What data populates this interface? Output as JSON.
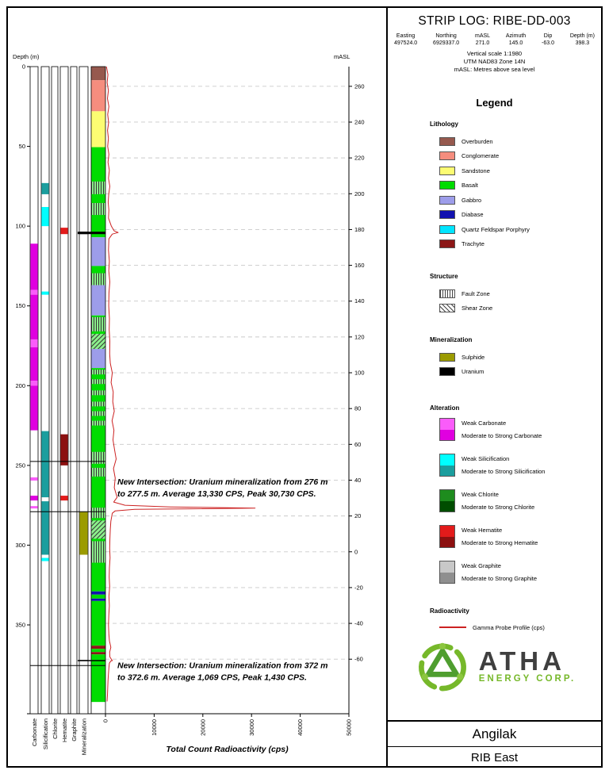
{
  "header": {
    "title": "STRIP LOG: RIBE-DD-003",
    "fields": [
      {
        "label": "Easting",
        "value": "497524.0"
      },
      {
        "label": "Northing",
        "value": "6929337.0"
      },
      {
        "label": "mASL",
        "value": "271.0"
      },
      {
        "label": "Azimuth",
        "value": "145.0"
      },
      {
        "label": "Dip",
        "value": "-63.0"
      },
      {
        "label": "Depth (m)",
        "value": "398.3"
      }
    ],
    "notes": [
      "Vertical scale 1:1980",
      "UTM NAD83 Zone 14N",
      "mASL: Metres above sea level"
    ]
  },
  "legend": {
    "title": "Legend",
    "lithology": {
      "title": "Lithology",
      "items": [
        {
          "label": "Overburden",
          "color": "#96594e"
        },
        {
          "label": "Conglomerate",
          "color": "#f58d7e"
        },
        {
          "label": "Sandstone",
          "color": "#fcfc72"
        },
        {
          "label": "Basalt",
          "color": "#00dc00"
        },
        {
          "label": "Gabbro",
          "color": "#9d9dea"
        },
        {
          "label": "Diabase",
          "color": "#1212b0"
        },
        {
          "label": "Quartz Feldspar Porphyry",
          "color": "#00e5ff"
        },
        {
          "label": "Trachyte",
          "color": "#8c1717"
        }
      ]
    },
    "structure": {
      "title": "Structure",
      "items": [
        {
          "label": "Fault Zone",
          "pattern": "fault"
        },
        {
          "label": "Shear Zone",
          "pattern": "shear"
        }
      ]
    },
    "mineralization": {
      "title": "Mineralization",
      "items": [
        {
          "label": "Sulphide",
          "color": "#9b9b00"
        },
        {
          "label": "Uranium",
          "color": "#000000"
        }
      ]
    },
    "alteration": {
      "title": "Alteration",
      "items": [
        {
          "weak_label": "Weak Carbonate",
          "strong_label": "Moderate to Strong Carbonate",
          "weak_color": "#fa5cfa",
          "strong_color": "#e000e0"
        },
        {
          "weak_label": "Weak Silicification",
          "strong_label": "Moderate to Strong Silicification",
          "weak_color": "#00ffff",
          "strong_color": "#1b9e9e"
        },
        {
          "weak_label": "Weak Chlorite",
          "strong_label": "Moderate to Strong Chlorite",
          "weak_color": "#1e8c1e",
          "strong_color": "#004d00"
        },
        {
          "weak_label": "Weak Hematite",
          "strong_label": "Moderate to Strong Hematite",
          "weak_color": "#e31b1b",
          "strong_color": "#8c1010"
        },
        {
          "weak_label": "Weak Graphite",
          "strong_label": "Moderate to Strong Graphite",
          "weak_color": "#c8c8c8",
          "strong_color": "#8f8f8f"
        }
      ]
    },
    "radioactivity": {
      "title": "Radioactivity",
      "items": [
        {
          "label": "Gamma Probe Profile (cps)",
          "color": "#cc2222"
        }
      ]
    }
  },
  "logo": {
    "name": "ATHA",
    "sub": "ENERGY CORP.",
    "accent": "#76b82a",
    "dark": "#3f3f3f"
  },
  "footer": {
    "line1": "Angilak",
    "line2": "RIB East"
  },
  "chart_data": {
    "type": "strip-log",
    "depth_axis": {
      "label": "Depth (m)",
      "min": 0,
      "max": 398.3,
      "ticks": [
        0,
        50,
        100,
        150,
        200,
        250,
        300,
        350
      ]
    },
    "masl_axis": {
      "label": "mASL",
      "surface_masl": 271.0,
      "dip_deg": -63.0,
      "ticks": [
        260,
        240,
        220,
        200,
        180,
        160,
        140,
        120,
        100,
        80,
        60,
        40,
        20,
        0,
        -20,
        -40,
        -60
      ]
    },
    "cps_axis": {
      "label": "Total Count Radioactivity (cps)",
      "min": 0,
      "max": 50000,
      "ticks": [
        0,
        10000,
        20000,
        30000,
        40000,
        50000
      ]
    },
    "tracks": [
      {
        "name": "Carbonate",
        "intervals": [
          {
            "from": 111,
            "to": 140,
            "grade": "strong"
          },
          {
            "from": 140,
            "to": 143,
            "grade": "weak"
          },
          {
            "from": 143,
            "to": 171,
            "grade": "strong"
          },
          {
            "from": 171,
            "to": 176,
            "grade": "weak"
          },
          {
            "from": 176,
            "to": 197,
            "grade": "strong"
          },
          {
            "from": 197,
            "to": 200,
            "grade": "weak"
          },
          {
            "from": 200,
            "to": 228,
            "grade": "strong"
          },
          {
            "from": 257.5,
            "to": 259.5,
            "grade": "weak"
          },
          {
            "from": 269,
            "to": 272,
            "grade": "strong"
          },
          {
            "from": 275.5,
            "to": 277,
            "grade": "weak"
          }
        ]
      },
      {
        "name": "Silicification",
        "intervals": [
          {
            "from": 73,
            "to": 80,
            "grade": "strong"
          },
          {
            "from": 88,
            "to": 100,
            "grade": "weak"
          },
          {
            "from": 141,
            "to": 143,
            "grade": "weak"
          },
          {
            "from": 228.5,
            "to": 270,
            "grade": "strong"
          },
          {
            "from": 272.5,
            "to": 306,
            "grade": "strong"
          },
          {
            "from": 308,
            "to": 310,
            "grade": "weak"
          }
        ]
      },
      {
        "name": "Chlorite",
        "intervals": []
      },
      {
        "name": "Hematite",
        "intervals": [
          {
            "from": 101,
            "to": 105,
            "grade": "weak"
          },
          {
            "from": 230.5,
            "to": 250,
            "grade": "strong"
          },
          {
            "from": 269,
            "to": 272,
            "grade": "weak"
          }
        ]
      },
      {
        "name": "Graphite",
        "intervals": []
      },
      {
        "name": "Mineralization",
        "intervals": [
          {
            "from": 103.5,
            "to": 105,
            "mineral": "Uranium"
          },
          {
            "from": 279,
            "to": 306,
            "mineral": "Sulphide"
          },
          {
            "from": 372,
            "to": 372.6,
            "mineral": "Uranium"
          }
        ]
      }
    ],
    "lithology": {
      "name": "Lithology",
      "intervals": [
        {
          "from": 0,
          "to": 8.5,
          "unit": "Overburden"
        },
        {
          "from": 8.5,
          "to": 28,
          "unit": "Conglomerate"
        },
        {
          "from": 28,
          "to": 50.5,
          "unit": "Sandstone"
        },
        {
          "from": 50.5,
          "to": 107,
          "unit": "Basalt"
        },
        {
          "from": 107,
          "to": 125,
          "unit": "Gabbro"
        },
        {
          "from": 125,
          "to": 137,
          "unit": "Basalt"
        },
        {
          "from": 137,
          "to": 156,
          "unit": "Gabbro"
        },
        {
          "from": 156,
          "to": 177,
          "unit": "Basalt"
        },
        {
          "from": 177,
          "to": 189,
          "unit": "Gabbro"
        },
        {
          "from": 189,
          "to": 329,
          "unit": "Basalt"
        },
        {
          "from": 329,
          "to": 331,
          "unit": "Diabase"
        },
        {
          "from": 331,
          "to": 333.5,
          "unit": "Basalt"
        },
        {
          "from": 333.5,
          "to": 335,
          "unit": "Diabase"
        },
        {
          "from": 335,
          "to": 363,
          "unit": "Basalt"
        },
        {
          "from": 363,
          "to": 365,
          "unit": "Trachyte"
        },
        {
          "from": 365,
          "to": 367,
          "unit": "Basalt"
        },
        {
          "from": 367,
          "to": 368.5,
          "unit": "Trachyte"
        },
        {
          "from": 368.5,
          "to": 398.3,
          "unit": "Basalt"
        }
      ]
    },
    "structures": [
      {
        "from": 72,
        "to": 80,
        "type": "Fault Zone"
      },
      {
        "from": 85.5,
        "to": 93,
        "type": "Fault Zone"
      },
      {
        "from": 129.5,
        "to": 137,
        "type": "Fault Zone"
      },
      {
        "from": 157,
        "to": 166,
        "type": "Fault Zone"
      },
      {
        "from": 167.5,
        "to": 177,
        "type": "Shear Zone"
      },
      {
        "from": 190,
        "to": 193,
        "type": "Fault Zone"
      },
      {
        "from": 196,
        "to": 199,
        "type": "Fault Zone"
      },
      {
        "from": 203,
        "to": 206,
        "type": "Fault Zone"
      },
      {
        "from": 210,
        "to": 213,
        "type": "Fault Zone"
      },
      {
        "from": 216,
        "to": 219,
        "type": "Fault Zone"
      },
      {
        "from": 222,
        "to": 225,
        "type": "Fault Zone"
      },
      {
        "from": 241.5,
        "to": 249,
        "type": "Fault Zone"
      },
      {
        "from": 251.5,
        "to": 257,
        "type": "Fault Zone"
      },
      {
        "from": 276.5,
        "to": 283,
        "type": "Fault Zone"
      },
      {
        "from": 284.5,
        "to": 296,
        "type": "Shear Zone"
      },
      {
        "from": 297.5,
        "to": 311,
        "type": "Fault Zone"
      }
    ],
    "marker_depths": [
      247.5,
      279,
      375.5
    ],
    "gamma_profile": {
      "name": "Gamma Probe Profile (cps)",
      "color": "#cc2222",
      "points": [
        [
          0,
          200
        ],
        [
          5,
          500
        ],
        [
          10,
          350
        ],
        [
          15,
          600
        ],
        [
          20,
          400
        ],
        [
          25,
          700
        ],
        [
          30,
          450
        ],
        [
          35,
          650
        ],
        [
          40,
          420
        ],
        [
          45,
          600
        ],
        [
          50,
          460
        ],
        [
          55,
          700
        ],
        [
          60,
          520
        ],
        [
          65,
          800
        ],
        [
          70,
          620
        ],
        [
          75,
          900
        ],
        [
          80,
          660
        ],
        [
          85,
          560
        ],
        [
          90,
          700
        ],
        [
          95,
          620
        ],
        [
          100,
          1200
        ],
        [
          103,
          1800
        ],
        [
          104,
          2600
        ],
        [
          105,
          1400
        ],
        [
          108,
          700
        ],
        [
          115,
          620
        ],
        [
          122,
          800
        ],
        [
          128,
          680
        ],
        [
          135,
          900
        ],
        [
          142,
          720
        ],
        [
          150,
          660
        ],
        [
          158,
          820
        ],
        [
          165,
          760
        ],
        [
          172,
          900
        ],
        [
          180,
          860
        ],
        [
          186,
          1000
        ],
        [
          192,
          1400
        ],
        [
          198,
          1150
        ],
        [
          204,
          1600
        ],
        [
          210,
          1500
        ],
        [
          216,
          1800
        ],
        [
          222,
          1350
        ],
        [
          228,
          1750
        ],
        [
          234,
          1550
        ],
        [
          240,
          1850
        ],
        [
          246,
          2200
        ],
        [
          252,
          1650
        ],
        [
          258,
          2000
        ],
        [
          264,
          1800
        ],
        [
          270,
          2400
        ],
        [
          273,
          1700
        ],
        [
          275,
          4000
        ],
        [
          276,
          13330
        ],
        [
          276.8,
          30730
        ],
        [
          277.3,
          15000
        ],
        [
          277.5,
          6000
        ],
        [
          278.5,
          2000
        ],
        [
          280,
          1400
        ],
        [
          285,
          1100
        ],
        [
          290,
          1000
        ],
        [
          296,
          920
        ],
        [
          302,
          860
        ],
        [
          308,
          950
        ],
        [
          314,
          820
        ],
        [
          320,
          760
        ],
        [
          326,
          860
        ],
        [
          332,
          720
        ],
        [
          338,
          800
        ],
        [
          344,
          680
        ],
        [
          350,
          620
        ],
        [
          356,
          700
        ],
        [
          360,
          820
        ],
        [
          364,
          1100
        ],
        [
          367,
          860
        ],
        [
          370,
          900
        ],
        [
          372,
          1300
        ],
        [
          372.3,
          1430
        ],
        [
          372.6,
          1100
        ],
        [
          374,
          800
        ],
        [
          377,
          700
        ],
        [
          381,
          600
        ],
        [
          385,
          520
        ],
        [
          390,
          460
        ],
        [
          394,
          400
        ],
        [
          398,
          320
        ]
      ]
    },
    "annotations": [
      {
        "depth": 262,
        "lines": [
          "New Intersection: Uranium mineralization from 276 m",
          "to 277.5 m. Average 13,330 CPS, Peak 30,730 CPS."
        ]
      },
      {
        "depth": 377,
        "lines": [
          "New Intersection: Uranium mineralization from 372 m",
          "to 372.6 m. Average 1,069 CPS, Peak 1,430 CPS."
        ]
      }
    ]
  }
}
